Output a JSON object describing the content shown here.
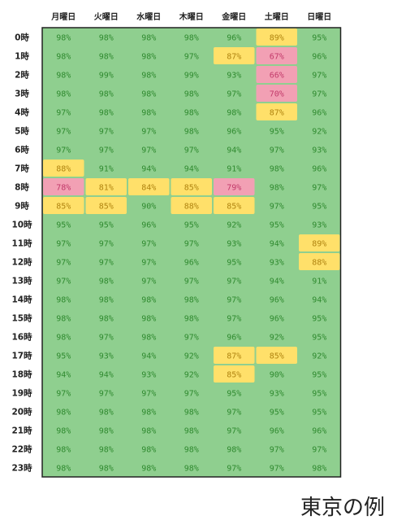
{
  "caption": "東京の例",
  "colors": {
    "green": "#8fcf8f",
    "yellow": "#ffe06a",
    "pink": "#f2a0b4",
    "green_text": "#2f8a2f",
    "yellow_text": "#b08410",
    "pink_text": "#c23a6a"
  },
  "chart_data": {
    "type": "heatmap",
    "columns": [
      "月曜日",
      "火曜日",
      "水曜日",
      "木曜日",
      "金曜日",
      "土曜日",
      "日曜日"
    ],
    "rows": [
      "0時",
      "1時",
      "2時",
      "3時",
      "4時",
      "5時",
      "6時",
      "7時",
      "8時",
      "9時",
      "10時",
      "11時",
      "12時",
      "13時",
      "14時",
      "15時",
      "16時",
      "17時",
      "18時",
      "19時",
      "20時",
      "21時",
      "22時",
      "23時"
    ],
    "values": [
      [
        98,
        98,
        98,
        98,
        96,
        89,
        95
      ],
      [
        98,
        98,
        98,
        97,
        87,
        67,
        96
      ],
      [
        98,
        99,
        98,
        99,
        93,
        66,
        97
      ],
      [
        98,
        98,
        98,
        98,
        97,
        70,
        97
      ],
      [
        97,
        98,
        98,
        98,
        98,
        87,
        96
      ],
      [
        97,
        97,
        97,
        98,
        96,
        95,
        92
      ],
      [
        97,
        97,
        97,
        97,
        94,
        97,
        93
      ],
      [
        88,
        91,
        94,
        94,
        91,
        98,
        96
      ],
      [
        78,
        81,
        84,
        85,
        79,
        98,
        97
      ],
      [
        85,
        85,
        90,
        88,
        85,
        97,
        95
      ],
      [
        95,
        95,
        96,
        95,
        92,
        95,
        93
      ],
      [
        97,
        97,
        97,
        97,
        93,
        94,
        89
      ],
      [
        97,
        97,
        97,
        96,
        95,
        93,
        88
      ],
      [
        97,
        98,
        97,
        97,
        97,
        94,
        91
      ],
      [
        98,
        98,
        98,
        98,
        97,
        96,
        94
      ],
      [
        98,
        98,
        98,
        98,
        97,
        96,
        95
      ],
      [
        98,
        97,
        98,
        97,
        96,
        92,
        95
      ],
      [
        95,
        93,
        94,
        92,
        87,
        85,
        92
      ],
      [
        94,
        94,
        93,
        92,
        85,
        90,
        95
      ],
      [
        97,
        97,
        97,
        97,
        95,
        93,
        95
      ],
      [
        98,
        98,
        98,
        98,
        97,
        95,
        95
      ],
      [
        98,
        98,
        98,
        98,
        97,
        96,
        96
      ],
      [
        98,
        98,
        98,
        98,
        98,
        97,
        97
      ],
      [
        98,
        98,
        98,
        98,
        97,
        97,
        98
      ]
    ],
    "value_suffix": "%"
  }
}
